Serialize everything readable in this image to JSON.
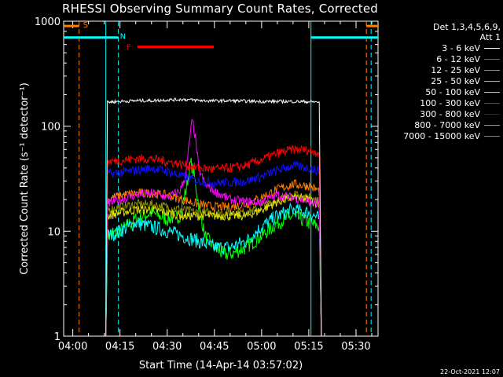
{
  "title": "RHESSI Observing Summary Count Rates, Corrected",
  "timestamp": "22-Oct-2021 12:07",
  "legend": {
    "header": [
      "Det 1,3,4,5,6,9,",
      "Att 1"
    ],
    "entries": [
      {
        "label": "3 - 6 keV",
        "color": "#ffffff"
      },
      {
        "label": "6 - 12 keV",
        "color": "#ff00ff"
      },
      {
        "label": "12 - 25 keV",
        "color": "#00ff00"
      },
      {
        "label": "25 - 50 keV",
        "color": "#00ffff"
      },
      {
        "label": "50 - 100 keV",
        "color": "#e0e000"
      },
      {
        "label": "100 - 300 keV",
        "color": "#ff0000"
      },
      {
        "label": "300 - 800 keV",
        "color": "#1010ff"
      },
      {
        "label": "800 - 7000 keV",
        "color": "#ff8000"
      },
      {
        "label": "7000 - 15000 keV",
        "color": "#909000"
      }
    ]
  },
  "chart_data": {
    "type": "line",
    "title": "RHESSI Observing Summary Count Rates, Corrected",
    "xlabel": "Start Time (14-Apr-14 03:57:02)",
    "ylabel": "Corrected Count Rate (s⁻¹ detector⁻¹)",
    "x_unit": "minutes after 04:00 UT",
    "xlim": [
      -2.9,
      97
    ],
    "ylim": [
      1,
      1000
    ],
    "y_scale": "log",
    "x_ticks": [
      {
        "v": 0,
        "label": "04:00"
      },
      {
        "v": 15,
        "label": "04:15"
      },
      {
        "v": 30,
        "label": "04:30"
      },
      {
        "v": 45,
        "label": "04:45"
      },
      {
        "v": 60,
        "label": "05:00"
      },
      {
        "v": 75,
        "label": "05:15"
      },
      {
        "v": 90,
        "label": "05:30"
      }
    ],
    "y_ticks": [
      {
        "v": 1,
        "label": "1"
      },
      {
        "v": 10,
        "label": "10"
      },
      {
        "v": 100,
        "label": "100"
      },
      {
        "v": 1000,
        "label": "1000"
      }
    ],
    "series": [
      {
        "name": "3 - 6 keV",
        "color": "#ffffff",
        "x": [
          10.5,
          11,
          15,
          20,
          25,
          30,
          35,
          40,
          45,
          50,
          55,
          60,
          65,
          70,
          75,
          78.5,
          79
        ],
        "y": [
          1,
          170,
          172,
          175,
          175,
          178,
          180,
          176,
          174,
          175,
          173,
          172,
          172,
          172,
          171,
          170,
          1
        ]
      },
      {
        "name": "6 - 12 keV",
        "color": "#ff00ff",
        "x": [
          10.5,
          11,
          15,
          20,
          25,
          30,
          34,
          36,
          37,
          38,
          39,
          40,
          42,
          45,
          50,
          55,
          60,
          65,
          70,
          75,
          78.5,
          79
        ],
        "y": [
          1,
          18,
          20,
          22,
          23,
          21,
          24,
          35,
          70,
          115,
          75,
          40,
          28,
          24,
          20,
          19,
          19,
          22,
          21,
          19,
          18,
          1
        ]
      },
      {
        "name": "12 - 25 keV",
        "color": "#00ff00",
        "x": [
          10.5,
          11,
          15,
          20,
          25,
          30,
          34,
          36,
          37.5,
          38.5,
          40,
          42,
          45,
          48,
          50,
          55,
          60,
          65,
          70,
          75,
          78.5,
          79
        ],
        "y": [
          1,
          9,
          10,
          13,
          15,
          13,
          14,
          25,
          45,
          35,
          18,
          9,
          7,
          6,
          6,
          7,
          9,
          12,
          14,
          12,
          11,
          1
        ]
      },
      {
        "name": "25 - 50 keV",
        "color": "#00ffff",
        "x": [
          10.5,
          11,
          15,
          20,
          25,
          30,
          35,
          40,
          45,
          50,
          55,
          60,
          65,
          70,
          75,
          78.5,
          79
        ],
        "y": [
          1,
          9,
          10,
          12,
          11,
          10,
          9,
          8,
          7,
          7,
          8,
          11,
          14,
          16,
          15,
          13,
          1
        ]
      },
      {
        "name": "50 - 100 keV",
        "color": "#e0e000",
        "x": [
          10.5,
          11,
          15,
          20,
          25,
          30,
          35,
          40,
          45,
          50,
          55,
          60,
          65,
          70,
          75,
          78.5,
          79
        ],
        "y": [
          1,
          14,
          15,
          16,
          16,
          15,
          14,
          14,
          14,
          14,
          14,
          16,
          19,
          21,
          20,
          18,
          1
        ]
      },
      {
        "name": "100 - 300 keV",
        "color": "#ff0000",
        "x": [
          10.5,
          11,
          15,
          20,
          25,
          30,
          35,
          40,
          45,
          50,
          55,
          60,
          65,
          70,
          75,
          78.5,
          79
        ],
        "y": [
          1,
          46,
          47,
          49,
          49,
          46,
          43,
          40,
          39,
          40,
          42,
          48,
          55,
          60,
          59,
          56,
          1
        ]
      },
      {
        "name": "300 - 800 keV",
        "color": "#1010ff",
        "x": [
          10.5,
          11,
          15,
          20,
          25,
          30,
          35,
          40,
          45,
          50,
          55,
          60,
          65,
          70,
          75,
          78.5,
          79
        ],
        "y": [
          1,
          35,
          36,
          38,
          40,
          37,
          33,
          30,
          29,
          29,
          30,
          33,
          38,
          42,
          40,
          37,
          1
        ]
      },
      {
        "name": "800 - 7000 keV",
        "color": "#ff8000",
        "x": [
          10.5,
          11,
          15,
          20,
          25,
          30,
          35,
          40,
          45,
          50,
          55,
          60,
          65,
          70,
          75,
          78.5,
          79
        ],
        "y": [
          1,
          20,
          22,
          23,
          23,
          22,
          20,
          18,
          17,
          17,
          18,
          21,
          25,
          28,
          27,
          24,
          1
        ]
      },
      {
        "name": "7000 - 15000 keV",
        "color": "#909000",
        "x": [
          10.5,
          11,
          15,
          20,
          25,
          30,
          35,
          40,
          45,
          50,
          55,
          60,
          65,
          70,
          75,
          78.5,
          79
        ],
        "y": [
          1,
          16,
          17,
          18,
          18,
          17,
          16,
          15,
          15,
          15,
          15,
          17,
          20,
          22,
          21,
          19,
          1
        ]
      }
    ],
    "annotations": {
      "saa": {
        "label": "S",
        "color": "#ff8000",
        "intervals": [
          [
            -2.9,
            2.0
          ],
          [
            93.3,
            97
          ]
        ],
        "level": 900
      },
      "night": {
        "label": "N",
        "color": "#00ffff",
        "intervals": [
          [
            -2.9,
            14.5
          ],
          [
            75.7,
            97
          ]
        ],
        "level": 700
      },
      "flare": {
        "label": "F",
        "color": "#ff0000",
        "interval": [
          20.5,
          44.8
        ],
        "level": 570
      },
      "dashed_orange_lines": [
        2.0,
        93.3
      ],
      "dashed_cyan_lines": [
        14.5,
        94.8
      ],
      "solid_cyan_lines": [
        10.5,
        75.7
      ]
    }
  }
}
